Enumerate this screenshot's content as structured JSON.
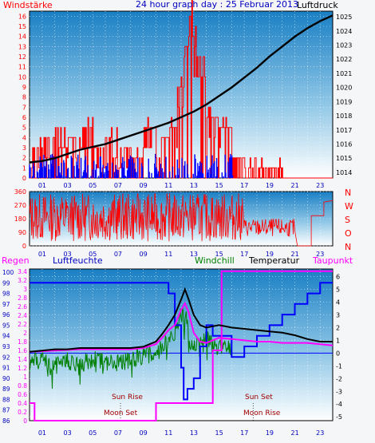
{
  "title": "24 hour graph day : 25 Februar 2013",
  "colors": {
    "wind": "#ff0000",
    "gust_low": "#0000ff",
    "pressure": "#000000",
    "humidity": "#0000ff",
    "temperature": "#000000",
    "windchill": "#008000",
    "dewpoint": "#ff00ff",
    "rain": "#ff00ff",
    "axis_label_blue": "#0000c0",
    "sky_top": "#1a7fc4",
    "sky_bottom": "#ffffff"
  },
  "chart_data": [
    {
      "id": "wind_pressure",
      "type": "bar",
      "left_label": "Windstärke",
      "right_label": "Luftdruck",
      "x_ticks": [
        "01",
        "03",
        "05",
        "07",
        "09",
        "11",
        "13",
        "15",
        "17",
        "19",
        "21",
        "23"
      ],
      "left_ticks": [
        "0",
        "1",
        "2",
        "3",
        "4",
        "5",
        "6",
        "7",
        "8",
        "9",
        "10",
        "11",
        "12",
        "13",
        "14",
        "15",
        "16"
      ],
      "right_ticks": [
        "1014",
        "1015",
        "1016",
        "1017",
        "1018",
        "1019",
        "1020",
        "1021",
        "1022",
        "1023",
        "1024",
        "1025"
      ],
      "ylim_left": [
        0,
        16.5
      ],
      "ylim_right": [
        1013.6,
        1025.4
      ],
      "pressure": {
        "hours": [
          0,
          1,
          2,
          3,
          4,
          5,
          6,
          7,
          8,
          9,
          10,
          11,
          12,
          13,
          14,
          15,
          16,
          17,
          18,
          19,
          20,
          21,
          22,
          23,
          24
        ],
        "values": [
          1014.7,
          1014.8,
          1015.0,
          1015.3,
          1015.6,
          1015.8,
          1016.0,
          1016.3,
          1016.6,
          1016.9,
          1017.2,
          1017.5,
          1017.9,
          1018.3,
          1018.8,
          1019.4,
          1020.0,
          1020.7,
          1021.4,
          1022.2,
          1022.9,
          1023.6,
          1024.2,
          1024.7,
          1025.1
        ]
      },
      "wind_levels_by_hour": [
        [
          0,
          3
        ],
        [
          1,
          4
        ],
        [
          2,
          5
        ],
        [
          3,
          4
        ],
        [
          4,
          5
        ],
        [
          5,
          3
        ],
        [
          6,
          4
        ],
        [
          7,
          3
        ],
        [
          8,
          2
        ],
        [
          9,
          5
        ],
        [
          10,
          4
        ],
        [
          11,
          5
        ],
        [
          11.7,
          9
        ],
        [
          12.3,
          13
        ],
        [
          12.6,
          16
        ],
        [
          13,
          12
        ],
        [
          14,
          6
        ],
        [
          15,
          5
        ],
        [
          16,
          2
        ],
        [
          17,
          1
        ],
        [
          18,
          1
        ],
        [
          19,
          1
        ],
        [
          20,
          0
        ],
        [
          21,
          0
        ],
        [
          22,
          0
        ],
        [
          23,
          0
        ]
      ]
    },
    {
      "id": "wind_direction",
      "type": "line",
      "left_ticks": [
        "0",
        "90",
        "180",
        "270",
        "360"
      ],
      "right_ticks": [
        "N",
        "W",
        "S",
        "O",
        "N"
      ],
      "ylim": [
        0,
        360
      ]
    },
    {
      "id": "rain_humidity_temp",
      "type": "line",
      "labels": {
        "rain": "Regen",
        "humidity": "Luftfeuchte",
        "windchill": "Windchill",
        "temperature": "Temperatur",
        "dewpoint": "Taupunkt"
      },
      "humidity_ticks": [
        "86",
        "87",
        "88",
        "89",
        "90",
        "91",
        "92",
        "93",
        "94",
        "95",
        "96",
        "97",
        "98",
        "99",
        "100"
      ],
      "rain_ticks": [
        "0",
        "0.2",
        "0.4",
        "0.6",
        "0.8",
        "1",
        "1.2",
        "1.4",
        "1.6",
        "1.8",
        "2",
        "2.2",
        "2.4",
        "2.6",
        "2.8",
        "3",
        "3.2",
        "3.4"
      ],
      "temp_ticks": [
        "-5",
        "-4",
        "-3",
        "-2",
        "-1",
        "0",
        "1",
        "2",
        "3",
        "4",
        "5",
        "6"
      ],
      "ylim_temp": [
        -5.3,
        6.6
      ],
      "annotations": [
        "Sun Rise",
        "Moon Set",
        "Sun Set",
        "Moon Rise"
      ],
      "temperature": {
        "hours": [
          0,
          1,
          2,
          3,
          4,
          5,
          6,
          7,
          8,
          9,
          10,
          10.5,
          11,
          11.5,
          12,
          12.3,
          12.6,
          13,
          13.5,
          14,
          14.5,
          15,
          16,
          17,
          18,
          19,
          20,
          21,
          22,
          23,
          24
        ],
        "values": [
          0.1,
          0.2,
          0.3,
          0.3,
          0.4,
          0.4,
          0.4,
          0.4,
          0.4,
          0.5,
          0.9,
          1.5,
          2.2,
          3.0,
          4.2,
          5.0,
          4.2,
          3.0,
          2.2,
          2.0,
          2.1,
          2.2,
          2.0,
          1.9,
          1.8,
          1.7,
          1.6,
          1.4,
          1.1,
          0.9,
          0.9
        ]
      },
      "dewpoint": {
        "hours": [
          0,
          2,
          4,
          6,
          8,
          9,
          10,
          10.5,
          11,
          11.5,
          12,
          12.3,
          12.6,
          13,
          13.5,
          14,
          15,
          16,
          17,
          18,
          19,
          20,
          21,
          22,
          23,
          24
        ],
        "values": [
          0.1,
          0.2,
          0.3,
          0.3,
          0.3,
          0.4,
          0.7,
          1.2,
          1.8,
          2.2,
          3.4,
          3.9,
          3.2,
          1.6,
          0.9,
          0.8,
          1.2,
          1.1,
          1.0,
          0.9,
          0.9,
          0.8,
          0.8,
          0.8,
          0.7,
          0.6
        ]
      },
      "humidity": {
        "hours": [
          0,
          10.5,
          11,
          11.5,
          12,
          12.2,
          12.5,
          13,
          13.5,
          14,
          14.5,
          16,
          17,
          18,
          19,
          20,
          21,
          22,
          23,
          24
        ],
        "values": [
          99,
          99,
          98,
          95,
          91,
          88,
          89,
          90,
          93,
          95,
          94,
          92,
          93,
          94,
          95,
          96,
          97,
          98,
          99,
          99
        ]
      },
      "windchill": {
        "hours": [
          0,
          1,
          2,
          3,
          4,
          5,
          6,
          7,
          8,
          9,
          10,
          10.5,
          11,
          11.5,
          12,
          12.4,
          12.7,
          13,
          13.5,
          14,
          14.5,
          15,
          15.5,
          16
        ],
        "values": [
          -0.8,
          -0.5,
          -1.0,
          -0.6,
          -0.9,
          -0.5,
          -0.7,
          -0.8,
          -0.5,
          -0.2,
          0.1,
          0.6,
          1.0,
          1.8,
          3.0,
          2.6,
          0.9,
          0.4,
          0.8,
          1.1,
          0.6,
          0.7,
          0.4,
          0.6
        ]
      },
      "rain": {
        "hours": [
          0,
          0.2,
          0.4,
          10,
          10.01,
          14.5,
          14.51,
          15.2,
          15.21,
          16,
          24
        ],
        "values": [
          0.4,
          0.4,
          0,
          0,
          0.4,
          0.4,
          1.6,
          1.6,
          3.4,
          3.4,
          3.4
        ]
      }
    }
  ]
}
